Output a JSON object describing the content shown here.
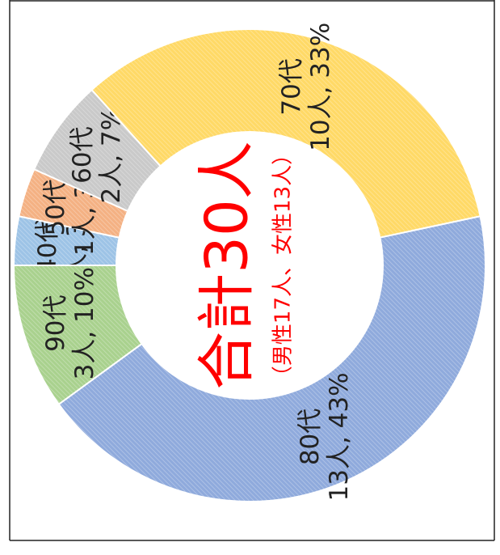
{
  "chart_data": {
    "type": "donut",
    "categories": [
      "40代",
      "50代",
      "60代",
      "70代",
      "80代",
      "90代"
    ],
    "values": [
      1,
      1,
      2,
      10,
      13,
      3
    ],
    "value_labels": [
      "1人, 3%",
      "1人, 3%",
      "2人, 7%",
      "10人, 33%",
      "13人, 43%",
      "3人, 10%"
    ],
    "colors": [
      "#9dc3e6",
      "#f4b183",
      "#c9c9c9",
      "#ffd966",
      "#8faadc",
      "#a9d18e"
    ],
    "center_title": "合計30人",
    "center_subtitle": "（男性17人、女性13人）"
  }
}
